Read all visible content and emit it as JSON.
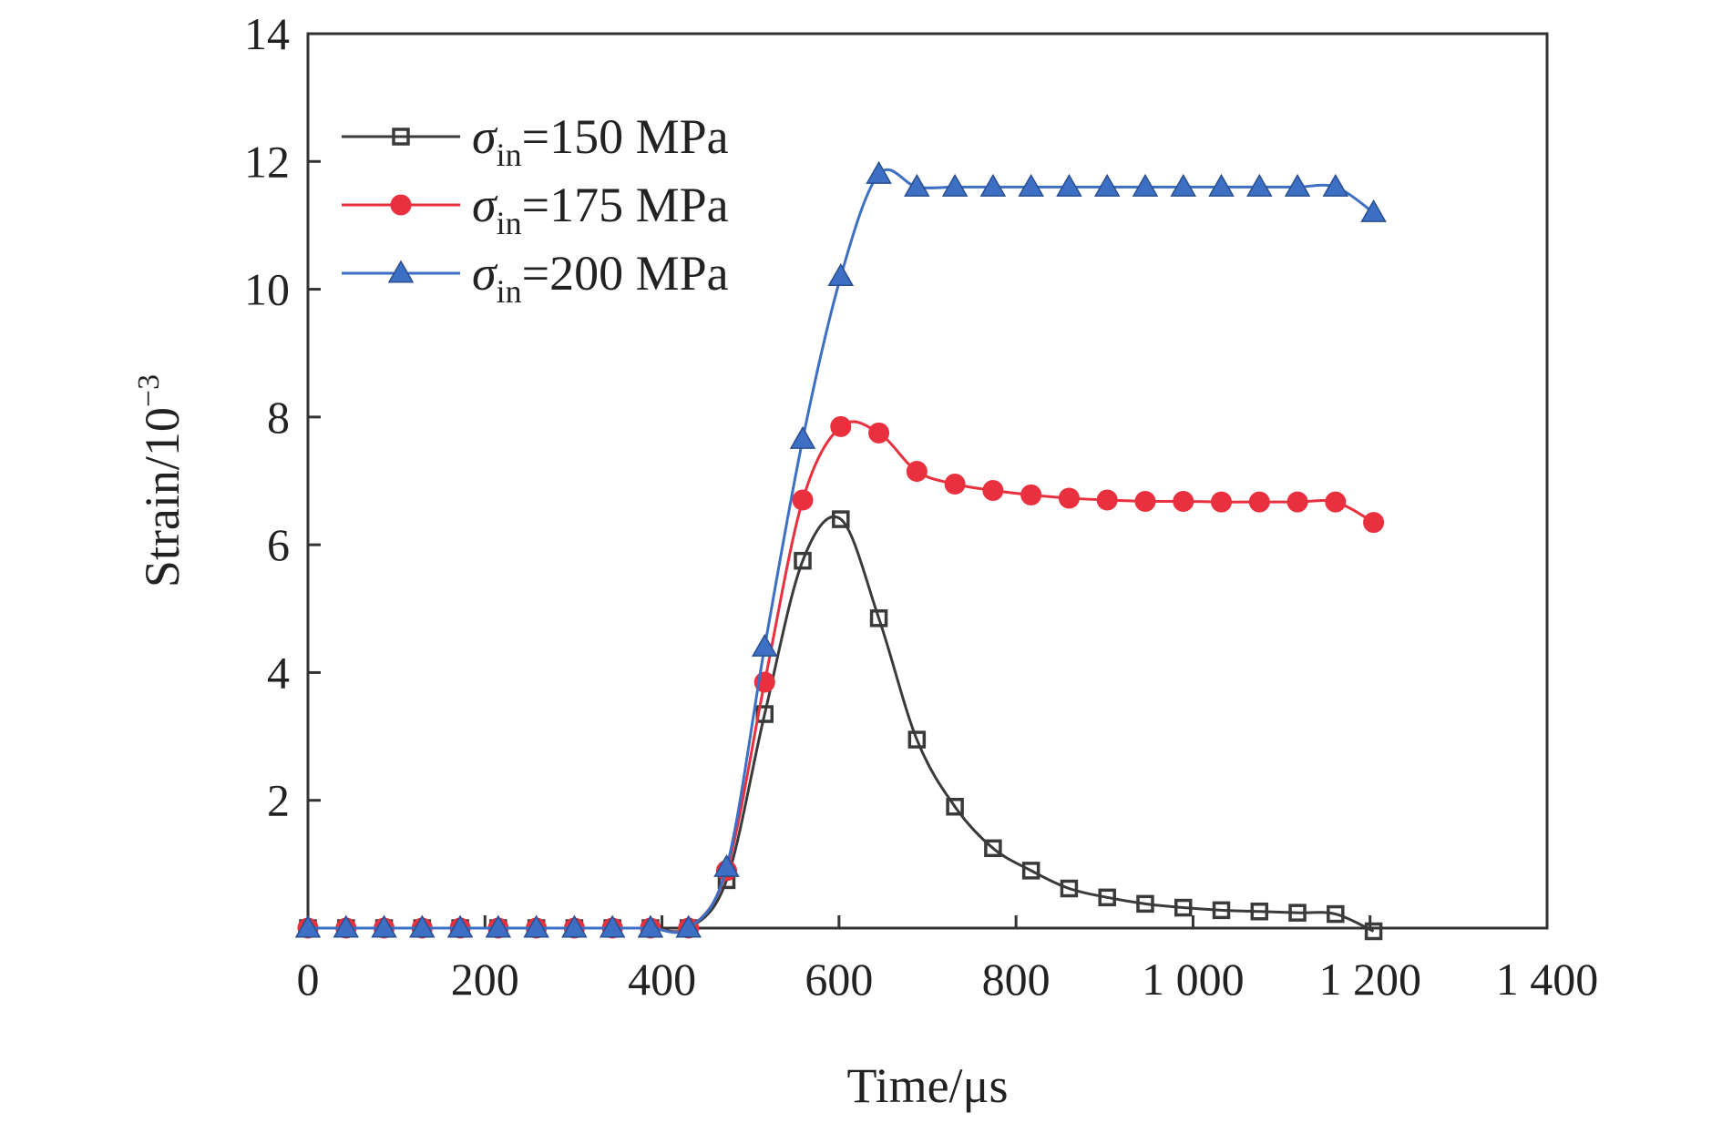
{
  "chart_data": {
    "type": "line",
    "xlabel": "Time/μs",
    "ylabel_base": "Strain/10",
    "ylabel_exp": "−3",
    "xlim": [
      0,
      1400
    ],
    "ylim": [
      0,
      14
    ],
    "x_ticks": [
      {
        "value": 0,
        "label": "0"
      },
      {
        "value": 200,
        "label": "200"
      },
      {
        "value": 400,
        "label": "400"
      },
      {
        "value": 600,
        "label": "600"
      },
      {
        "value": 800,
        "label": "800"
      },
      {
        "value": 1000,
        "label": "1 000"
      },
      {
        "value": 1200,
        "label": "1 200"
      },
      {
        "value": 1400,
        "label": "1 400"
      }
    ],
    "y_ticks": [
      {
        "value": 2,
        "label": "2"
      },
      {
        "value": 4,
        "label": "4"
      },
      {
        "value": 6,
        "label": "6"
      },
      {
        "value": 8,
        "label": "8"
      },
      {
        "value": 10,
        "label": "10"
      },
      {
        "value": 12,
        "label": "12"
      },
      {
        "value": 14,
        "label": "14"
      }
    ],
    "grid": false,
    "legend_position": "top-left",
    "series": [
      {
        "name": "σin=150 MPa",
        "label_symbol": "σ",
        "label_sub": "in",
        "label_rest": "=150 MPa",
        "color": "#3a3a3a",
        "marker": "square",
        "x": [
          0,
          43,
          86,
          129,
          172,
          215,
          258,
          301,
          344,
          387,
          430,
          473,
          516,
          559,
          602,
          645,
          688,
          731,
          774,
          817,
          860,
          903,
          946,
          989,
          1032,
          1075,
          1118,
          1161,
          1204
        ],
        "y": [
          0,
          0,
          0,
          0,
          0,
          0,
          0,
          0,
          0,
          0,
          0,
          0.75,
          3.35,
          5.75,
          6.4,
          4.85,
          2.95,
          1.9,
          1.25,
          0.9,
          0.62,
          0.48,
          0.38,
          0.32,
          0.28,
          0.26,
          0.24,
          0.22,
          -0.05
        ]
      },
      {
        "name": "σin=175 MPa",
        "label_symbol": "σ",
        "label_sub": "in",
        "label_rest": "=175 MPa",
        "color": "#e8303e",
        "marker": "circle",
        "x": [
          0,
          43,
          86,
          129,
          172,
          215,
          258,
          301,
          344,
          387,
          430,
          473,
          516,
          559,
          602,
          645,
          688,
          731,
          774,
          817,
          860,
          903,
          946,
          989,
          1032,
          1075,
          1118,
          1161,
          1204
        ],
        "y": [
          0,
          0,
          0,
          0,
          0,
          0,
          0,
          0,
          0,
          0,
          0,
          0.9,
          3.85,
          6.7,
          7.85,
          7.75,
          7.15,
          6.95,
          6.85,
          6.78,
          6.73,
          6.7,
          6.68,
          6.68,
          6.67,
          6.67,
          6.67,
          6.67,
          6.35
        ]
      },
      {
        "name": "σin=200 MPa",
        "label_symbol": "σ",
        "label_sub": "in",
        "label_rest": "=200 MPa",
        "color": "#3d6fc4",
        "marker": "triangle",
        "x": [
          0,
          43,
          86,
          129,
          172,
          215,
          258,
          301,
          344,
          387,
          430,
          473,
          516,
          559,
          602,
          645,
          688,
          731,
          774,
          817,
          860,
          903,
          946,
          989,
          1032,
          1075,
          1118,
          1161,
          1204
        ],
        "y": [
          0,
          0,
          0,
          0,
          0,
          0,
          0,
          0,
          0,
          0,
          0,
          0.95,
          4.4,
          7.65,
          10.2,
          11.8,
          11.6,
          11.6,
          11.6,
          11.6,
          11.6,
          11.6,
          11.6,
          11.6,
          11.6,
          11.6,
          11.6,
          11.6,
          11.2
        ]
      }
    ]
  }
}
